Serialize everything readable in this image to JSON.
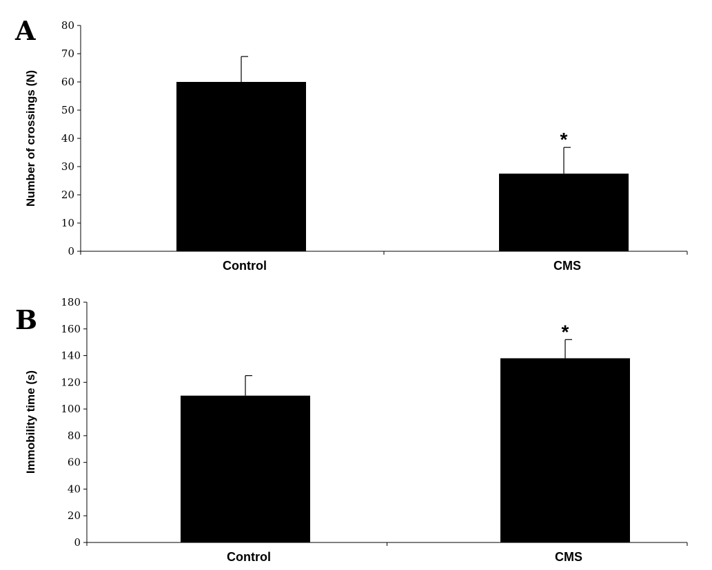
{
  "chart_data": [
    {
      "type": "bar",
      "panel": "A",
      "categories": [
        "Control",
        "CMS"
      ],
      "values": [
        60,
        27.5
      ],
      "error": [
        9,
        9.3
      ],
      "significance": [
        "",
        "*"
      ],
      "ylabel": "Number of crossings (N)",
      "xlabel": "",
      "ylim": [
        0,
        80
      ],
      "yticks": [
        0,
        10,
        20,
        30,
        40,
        50,
        60,
        70,
        80
      ],
      "bar_color": "#000000",
      "grid": false
    },
    {
      "type": "bar",
      "panel": "B",
      "categories": [
        "Control",
        "CMS"
      ],
      "values": [
        110,
        138
      ],
      "error": [
        15,
        14
      ],
      "significance": [
        "",
        "*"
      ],
      "ylabel": "Immobility time (s)",
      "xlabel": "",
      "ylim": [
        0,
        180
      ],
      "yticks": [
        0,
        20,
        40,
        60,
        80,
        100,
        120,
        140,
        160,
        180
      ],
      "bar_color": "#000000",
      "grid": false
    }
  ]
}
